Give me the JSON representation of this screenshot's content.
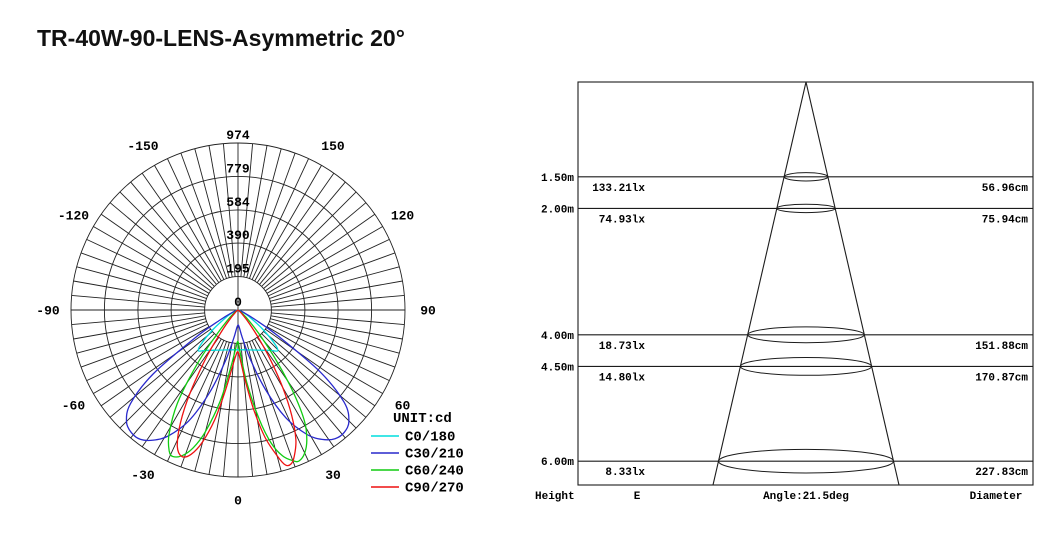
{
  "page": {
    "title": "TR-40W-90-LENS-Asymmetric 20°"
  },
  "colors": {
    "line": "#1c1c1c",
    "grid": "#222222",
    "text": "#000000",
    "background": "#ffffff"
  },
  "chart_data": [
    {
      "id": "polar",
      "type": "line",
      "subtype": "polar-luminous-intensity",
      "unit_label": "UNIT:cd",
      "radial_max": 974,
      "radial_ticks": [
        974,
        779,
        584,
        390,
        195,
        0
      ],
      "angle_labels": [
        -150,
        -120,
        -90,
        -60,
        -30,
        0,
        30,
        60,
        90,
        120,
        150
      ],
      "spoke_step_deg": 5,
      "grid": true,
      "legend_position": "bottom-right",
      "series": [
        {
          "name": "C0/180",
          "color": "#00dddd",
          "points": [
            [
              -90,
              3
            ],
            [
              -80,
              6
            ],
            [
              -70,
              20
            ],
            [
              -60,
              70
            ],
            [
              -52,
              185
            ],
            [
              -47,
              300
            ],
            [
              -44,
              332
            ],
            [
              -40,
              308
            ],
            [
              -35,
              287
            ],
            [
              -30,
              271
            ],
            [
              -25,
              258
            ],
            [
              -20,
              248
            ],
            [
              -15,
              241
            ],
            [
              -10,
              236
            ],
            [
              -5,
              233
            ],
            [
              0,
              232
            ],
            [
              5,
              233
            ],
            [
              10,
              236
            ],
            [
              15,
              241
            ],
            [
              20,
              248
            ],
            [
              25,
              258
            ],
            [
              30,
              271
            ],
            [
              35,
              287
            ],
            [
              40,
              308
            ],
            [
              44,
              332
            ],
            [
              47,
              300
            ],
            [
              52,
              185
            ],
            [
              60,
              70
            ],
            [
              70,
              20
            ],
            [
              80,
              6
            ],
            [
              90,
              3
            ]
          ]
        },
        {
          "name": "C30/210",
          "color": "#2929cc",
          "points": [
            [
              -80,
              4
            ],
            [
              -72,
              12
            ],
            [
              -66,
              40
            ],
            [
              -61,
              120
            ],
            [
              -57,
              300
            ],
            [
              -53,
              620
            ],
            [
              -49,
              830
            ],
            [
              -45,
              920
            ],
            [
              -41,
              948
            ],
            [
              -37,
              945
            ],
            [
              -33,
              905
            ],
            [
              -29,
              840
            ],
            [
              -24,
              710
            ],
            [
              -19,
              510
            ],
            [
              -14,
              310
            ],
            [
              -9,
              175
            ],
            [
              -4,
              105
            ],
            [
              0,
              88
            ],
            [
              4,
              100
            ],
            [
              9,
              165
            ],
            [
              14,
              295
            ],
            [
              19,
              490
            ],
            [
              24,
              690
            ],
            [
              29,
              830
            ],
            [
              33,
              900
            ],
            [
              37,
              940
            ],
            [
              41,
              945
            ],
            [
              45,
              915
            ],
            [
              49,
              820
            ],
            [
              53,
              600
            ],
            [
              57,
              280
            ],
            [
              61,
              110
            ],
            [
              66,
              36
            ],
            [
              72,
              11
            ],
            [
              80,
              4
            ]
          ]
        },
        {
          "name": "C60/240",
          "color": "#11cc11",
          "points": [
            [
              -70,
              3
            ],
            [
              -60,
              9
            ],
            [
              -52,
              30
            ],
            [
              -46,
              80
            ],
            [
              -41,
              190
            ],
            [
              -37,
              400
            ],
            [
              -33,
              650
            ],
            [
              -29,
              830
            ],
            [
              -26,
              915
            ],
            [
              -24,
              935
            ],
            [
              -21,
              910
            ],
            [
              -18,
              845
            ],
            [
              -15,
              735
            ],
            [
              -11,
              540
            ],
            [
              -7,
              330
            ],
            [
              -3,
              215
            ],
            [
              0,
              185
            ],
            [
              3,
              250
            ],
            [
              7,
              430
            ],
            [
              11,
              650
            ],
            [
              14,
              800
            ],
            [
              17,
              890
            ],
            [
              20,
              935
            ],
            [
              22,
              950
            ],
            [
              25,
              920
            ],
            [
              28,
              855
            ],
            [
              31,
              750
            ],
            [
              34,
              570
            ],
            [
              37,
              380
            ],
            [
              41,
              200
            ],
            [
              46,
              85
            ],
            [
              52,
              30
            ],
            [
              60,
              8
            ],
            [
              70,
              3
            ]
          ]
        },
        {
          "name": "C90/270",
          "color": "#ee1111",
          "points": [
            [
              -60,
              3
            ],
            [
              -52,
              10
            ],
            [
              -46,
              25
            ],
            [
              -42,
              60
            ],
            [
              -38,
              140
            ],
            [
              -34,
              320
            ],
            [
              -30,
              560
            ],
            [
              -27,
              740
            ],
            [
              -24,
              870
            ],
            [
              -21,
              915
            ],
            [
              -18,
              885
            ],
            [
              -15,
              795
            ],
            [
              -12,
              655
            ],
            [
              -9,
              480
            ],
            [
              -6,
              345
            ],
            [
              -3,
              270
            ],
            [
              0,
              245
            ],
            [
              3,
              300
            ],
            [
              6,
              420
            ],
            [
              9,
              590
            ],
            [
              12,
              760
            ],
            [
              15,
              880
            ],
            [
              17,
              945
            ],
            [
              19,
              950
            ],
            [
              21,
              915
            ],
            [
              24,
              830
            ],
            [
              27,
              690
            ],
            [
              30,
              520
            ],
            [
              33,
              350
            ],
            [
              36,
              210
            ],
            [
              40,
              100
            ],
            [
              45,
              38
            ],
            [
              52,
              11
            ],
            [
              60,
              3
            ]
          ]
        }
      ]
    },
    {
      "id": "cone",
      "type": "table",
      "subtype": "cone-illuminance-diagram",
      "beam_angle_deg": 21.5,
      "footer": {
        "height": "Height",
        "e": "E",
        "angle": "Angle:21.5deg",
        "diameter": "Diameter"
      },
      "rows": [
        {
          "height": "1.50m",
          "height_m": 1.5,
          "e": "133.21lx",
          "e_lux": 133.21,
          "diameter": "56.96cm",
          "diameter_cm": 56.96
        },
        {
          "height": "2.00m",
          "height_m": 2.0,
          "e": "74.93lx",
          "e_lux": 74.93,
          "diameter": "75.94cm",
          "diameter_cm": 75.94
        },
        {
          "height": "4.00m",
          "height_m": 4.0,
          "e": "18.73lx",
          "e_lux": 18.73,
          "diameter": "151.88cm",
          "diameter_cm": 151.88
        },
        {
          "height": "4.50m",
          "height_m": 4.5,
          "e": "14.80lx",
          "e_lux": 14.8,
          "diameter": "170.87cm",
          "diameter_cm": 170.87
        },
        {
          "height": "6.00m",
          "height_m": 6.0,
          "e": "8.33lx",
          "e_lux": 8.33,
          "diameter": "227.83cm",
          "diameter_cm": 227.83
        }
      ]
    }
  ]
}
